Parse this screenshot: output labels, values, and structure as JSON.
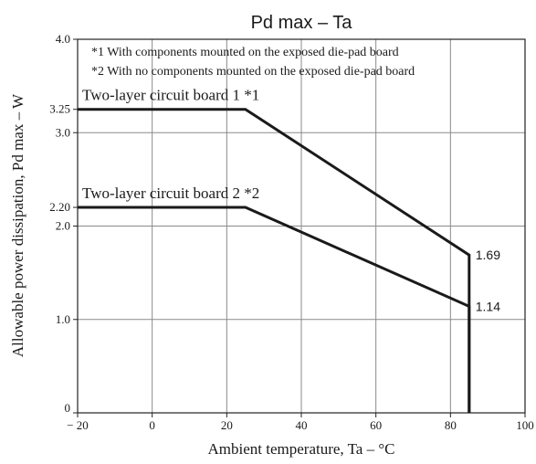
{
  "chart_data": {
    "type": "line",
    "title": "Pd max  –  Ta",
    "xlabel": "Ambient temperature, Ta  –  °C",
    "ylabel": "Allowable power dissipation, Pd max  –  W",
    "xlim": [
      -20,
      100
    ],
    "ylim": [
      0,
      4.0
    ],
    "x_ticks": [
      -20,
      0,
      20,
      40,
      60,
      80,
      100
    ],
    "x_tick_labels": [
      "− 20",
      "0",
      "20",
      "40",
      "60",
      "80",
      "100"
    ],
    "y_ticks": [
      0,
      1.0,
      2.0,
      3.0,
      4.0
    ],
    "y_tick_labels": [
      "0",
      "1.0",
      "2.0",
      "3.0",
      "4.0"
    ],
    "y_extra_ticks": [
      3.25,
      2.2
    ],
    "y_extra_tick_labels": [
      "3.25",
      "2.20"
    ],
    "grid": true,
    "notes": [
      "*1 With components mounted on the exposed die-pad board",
      "*2 With no components mounted on the exposed die-pad board"
    ],
    "series": [
      {
        "name": "Two-layer circuit board 1 *1",
        "x": [
          -20,
          25,
          85,
          85
        ],
        "y": [
          3.25,
          3.25,
          1.69,
          0
        ],
        "end_label": "1.69"
      },
      {
        "name": "Two-layer circuit board 2 *2",
        "x": [
          -20,
          25,
          85,
          85
        ],
        "y": [
          2.2,
          2.2,
          1.14,
          0
        ],
        "end_label": "1.14"
      }
    ]
  }
}
